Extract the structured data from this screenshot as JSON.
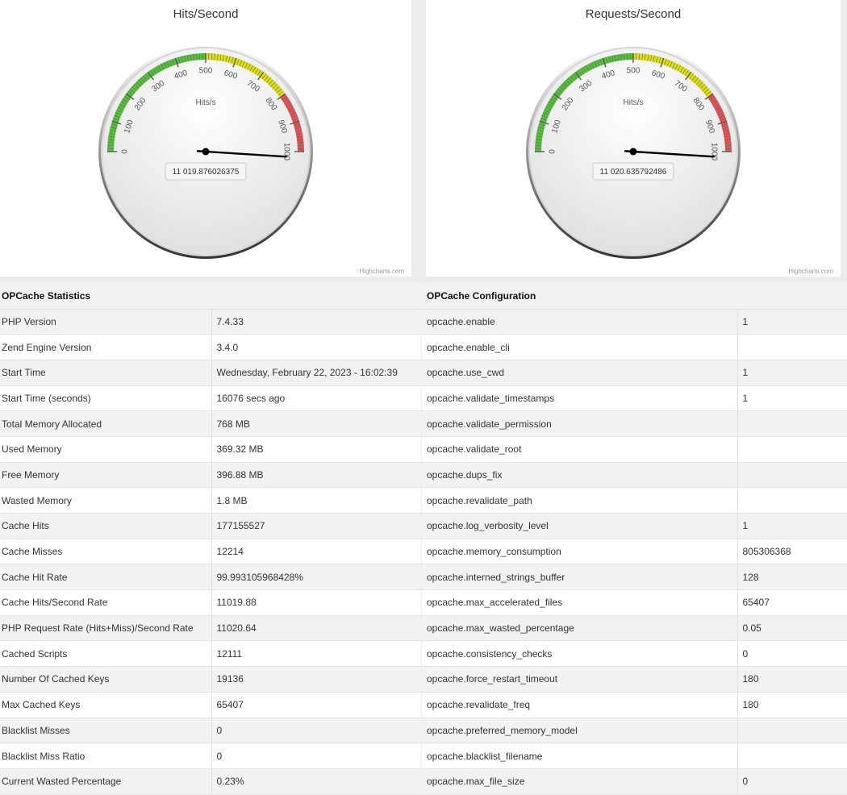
{
  "gauges": [
    {
      "title": "Hits/Second",
      "unit": "Hits/s",
      "value": 11019.876026375,
      "value_label": "11 019.876026375",
      "min": 0,
      "max": 1000,
      "ticks": [
        "0",
        "100",
        "200",
        "300",
        "400",
        "500",
        "600",
        "700",
        "800",
        "900",
        "1000"
      ],
      "bands": [
        {
          "from": 0,
          "to": 500,
          "color": "#55BF3B"
        },
        {
          "from": 500,
          "to": 800,
          "color": "#DDDF0D"
        },
        {
          "from": 800,
          "to": 1000,
          "color": "#DF5353"
        }
      ],
      "credit": "Highcharts.com"
    },
    {
      "title": "Requests/Second",
      "unit": "Hits/s",
      "value": 11020.635792486,
      "value_label": "11 020.635792486",
      "min": 0,
      "max": 1000,
      "ticks": [
        "0",
        "100",
        "200",
        "300",
        "400",
        "500",
        "600",
        "700",
        "800",
        "900",
        "1000"
      ],
      "bands": [
        {
          "from": 0,
          "to": 500,
          "color": "#55BF3B"
        },
        {
          "from": 500,
          "to": 800,
          "color": "#DDDF0D"
        },
        {
          "from": 800,
          "to": 1000,
          "color": "#DF5353"
        }
      ],
      "credit": "Highcharts.com"
    }
  ],
  "statistics": {
    "heading": "OPCache Statistics",
    "rows": [
      [
        "PHP Version",
        "7.4.33"
      ],
      [
        "Zend Engine Version",
        "3.4.0"
      ],
      [
        "Start Time",
        "Wednesday, February 22, 2023 - 16:02:39"
      ],
      [
        "Start Time (seconds)",
        "16076 secs ago"
      ],
      [
        "Total Memory Allocated",
        "768 MB"
      ],
      [
        "Used Memory",
        "369.32 MB"
      ],
      [
        "Free Memory",
        "396.88 MB"
      ],
      [
        "Wasted Memory",
        "1.8 MB"
      ],
      [
        "Cache Hits",
        "177155527"
      ],
      [
        "Cache Misses",
        "12214"
      ],
      [
        "Cache Hit Rate",
        "99.993105968428%"
      ],
      [
        "Cache Hits/Second Rate",
        "11019.88"
      ],
      [
        "PHP Request Rate (Hits+Miss)/Second Rate",
        "11020.64"
      ],
      [
        "Cached Scripts",
        "12111"
      ],
      [
        "Number Of Cached Keys",
        "19136"
      ],
      [
        "Max Cached Keys",
        "65407"
      ],
      [
        "Blacklist Misses",
        "0"
      ],
      [
        "Blacklist Miss Ratio",
        "0"
      ],
      [
        "Current Wasted Percentage",
        "0.23%"
      ]
    ]
  },
  "configuration": {
    "heading": "OPCache Configuration",
    "rows": [
      [
        "opcache.enable",
        "1"
      ],
      [
        "opcache.enable_cli",
        ""
      ],
      [
        "opcache.use_cwd",
        "1"
      ],
      [
        "opcache.validate_timestamps",
        "1"
      ],
      [
        "opcache.validate_permission",
        ""
      ],
      [
        "opcache.validate_root",
        ""
      ],
      [
        "opcache.dups_fix",
        ""
      ],
      [
        "opcache.revalidate_path",
        ""
      ],
      [
        "opcache.log_verbosity_level",
        "1"
      ],
      [
        "opcache.memory_consumption",
        "805306368"
      ],
      [
        "opcache.interned_strings_buffer",
        "128"
      ],
      [
        "opcache.max_accelerated_files",
        "65407"
      ],
      [
        "opcache.max_wasted_percentage",
        "0.05"
      ],
      [
        "opcache.consistency_checks",
        "0"
      ],
      [
        "opcache.force_restart_timeout",
        "180"
      ],
      [
        "opcache.revalidate_freq",
        "180"
      ],
      [
        "opcache.preferred_memory_model",
        ""
      ],
      [
        "opcache.blacklist_filename",
        ""
      ],
      [
        "opcache.max_file_size",
        "0"
      ]
    ]
  }
}
